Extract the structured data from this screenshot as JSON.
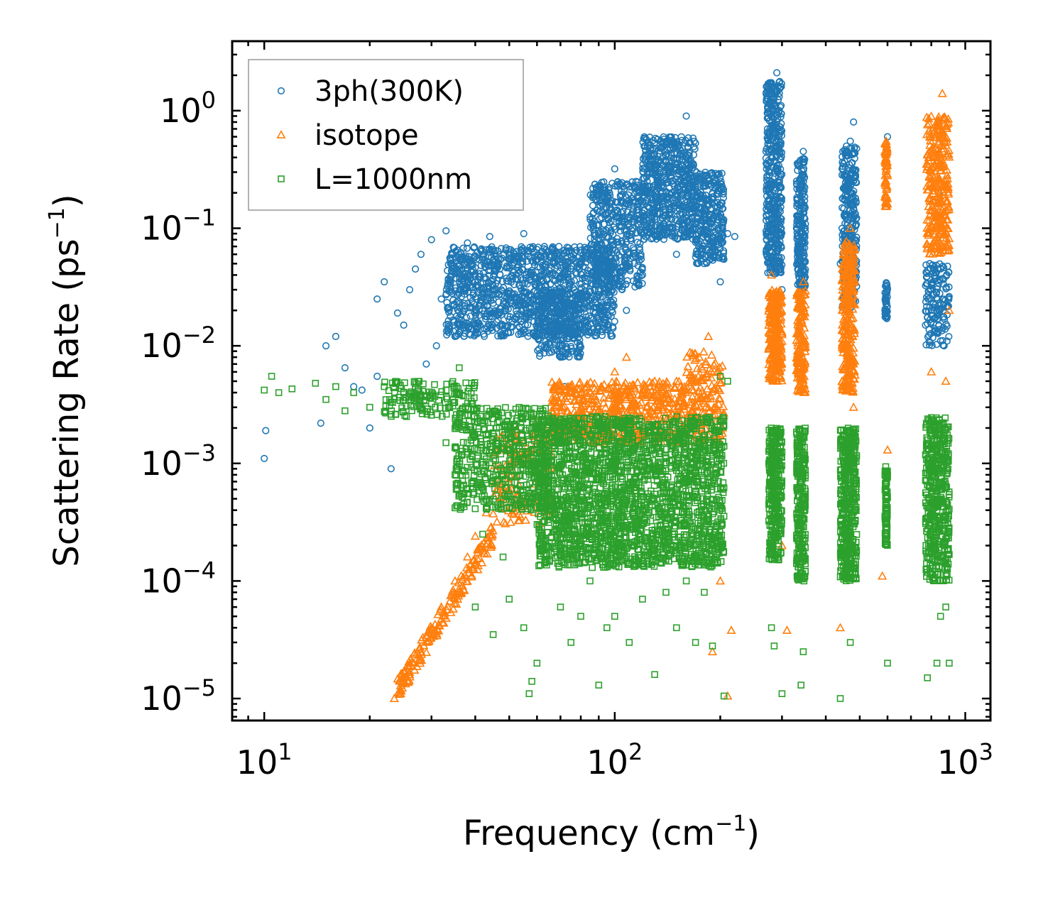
{
  "chart_data": {
    "type": "scatter",
    "title": "",
    "xlabel": "Frequency (cm",
    "xlabel_sup": "−1",
    "xlabel_end": ")",
    "ylabel": "Scattering Rate (ps",
    "ylabel_sup": "−1",
    "ylabel_end": ")",
    "xscale": "log",
    "yscale": "log",
    "xlim": [
      8.1,
      1180
    ],
    "ylim": [
      6.5e-06,
      3.9
    ],
    "grid": false,
    "legend_position": "top-left",
    "xticks": [
      {
        "value": 10,
        "base": "10",
        "exp": "1"
      },
      {
        "value": 100,
        "base": "10",
        "exp": "2"
      },
      {
        "value": 1000,
        "base": "10",
        "exp": "3"
      }
    ],
    "yticks": [
      {
        "value": 1e-05,
        "base": "10",
        "exp": "−5"
      },
      {
        "value": 0.0001,
        "base": "10",
        "exp": "−4"
      },
      {
        "value": 0.001,
        "base": "10",
        "exp": "−3"
      },
      {
        "value": 0.01,
        "base": "10",
        "exp": "−2"
      },
      {
        "value": 0.1,
        "base": "10",
        "exp": "−1"
      },
      {
        "value": 1,
        "base": "10",
        "exp": "0"
      }
    ],
    "series": [
      {
        "name": "3ph(300K)",
        "marker": "circle",
        "color": "#1f77b4",
        "points": [
          [
            10.0,
            0.0011
          ],
          [
            10.1,
            0.0019
          ],
          [
            14.5,
            0.0022
          ],
          [
            15,
            0.01
          ],
          [
            16,
            0.012
          ],
          [
            17,
            0.0065
          ],
          [
            18,
            0.0045
          ],
          [
            19,
            0.0042
          ],
          [
            20,
            0.002
          ],
          [
            21,
            0.0055
          ],
          [
            21,
            0.025
          ],
          [
            22,
            0.035
          ],
          [
            23,
            0.0009
          ],
          [
            24,
            0.019
          ],
          [
            25,
            0.015
          ],
          [
            26,
            0.03
          ],
          [
            27,
            0.045
          ],
          [
            28,
            0.06
          ],
          [
            29,
            0.007
          ],
          [
            30,
            0.08
          ],
          [
            31,
            0.01
          ],
          [
            32,
            0.025
          ],
          [
            33,
            0.095
          ],
          [
            34,
            0.05
          ],
          [
            35,
            0.012
          ],
          [
            36,
            0.035
          ],
          [
            38,
            0.075
          ],
          [
            40,
            0.02
          ],
          [
            42,
            0.06
          ],
          [
            44,
            0.085
          ],
          [
            46,
            0.03
          ],
          [
            48,
            0.015
          ],
          [
            50,
            0.055
          ],
          [
            52,
            0.022
          ],
          [
            55,
            0.09
          ],
          [
            58,
            0.04
          ],
          [
            60,
            0.012
          ],
          [
            63,
            0.07
          ],
          [
            66,
            0.03
          ],
          [
            70,
            0.008
          ],
          [
            72,
            0.0045
          ],
          [
            75,
            0.045
          ],
          [
            80,
            0.065
          ],
          [
            85,
            0.02
          ],
          [
            90,
            0.08
          ],
          [
            95,
            0.05
          ],
          [
            100,
            0.32
          ],
          [
            105,
            0.12
          ],
          [
            108,
            0.02
          ],
          [
            110,
            0.06
          ],
          [
            115,
            0.25
          ],
          [
            120,
            0.04
          ],
          [
            125,
            0.1
          ],
          [
            130,
            0.35
          ],
          [
            135,
            0.55
          ],
          [
            140,
            0.2
          ],
          [
            150,
            0.06
          ],
          [
            160,
            0.9
          ],
          [
            165,
            0.25
          ],
          [
            170,
            0.1
          ],
          [
            180,
            0.05
          ],
          [
            190,
            0.2
          ],
          [
            200,
            0.035
          ],
          [
            210,
            0.09
          ],
          [
            220,
            0.085
          ],
          [
            270,
            0.45
          ],
          [
            280,
            1.6
          ],
          [
            290,
            2.1
          ],
          [
            300,
            0.03
          ],
          [
            330,
            0.1
          ],
          [
            345,
            0.45
          ],
          [
            440,
            0.05
          ],
          [
            470,
            0.55
          ],
          [
            480,
            0.8
          ],
          [
            590,
            0.02
          ],
          [
            600,
            0.6
          ],
          [
            770,
            0.015
          ],
          [
            800,
            0.02
          ],
          [
            840,
            0.2
          ],
          [
            870,
            0.01
          ]
        ],
        "bands": [
          {
            "x_range": [
              33,
              100
            ],
            "y_range": [
              0.012,
              0.07
            ],
            "n": 1300
          },
          {
            "x_range": [
              60,
              80
            ],
            "y_range": [
              0.008,
              0.03
            ],
            "n": 250
          },
          {
            "x_range": [
              85,
              120
            ],
            "y_range": [
              0.03,
              0.25
            ],
            "n": 450
          },
          {
            "x_range": [
              120,
              170
            ],
            "y_range": [
              0.08,
              0.6
            ],
            "n": 600
          },
          {
            "x_range": [
              170,
              205
            ],
            "y_range": [
              0.05,
              0.3
            ],
            "n": 300
          },
          {
            "x_range": [
              270,
              300
            ],
            "y_range": [
              0.04,
              1.8
            ],
            "n": 450
          },
          {
            "x_range": [
              330,
              350
            ],
            "y_range": [
              0.03,
              0.4
            ],
            "n": 220
          },
          {
            "x_range": [
              445,
              490
            ],
            "y_range": [
              0.02,
              0.5
            ],
            "n": 300
          },
          {
            "x_range": [
              590,
              600
            ],
            "y_range": [
              0.017,
              0.035
            ],
            "n": 40
          },
          {
            "x_range": [
              770,
              900
            ],
            "y_range": [
              0.01,
              0.05
            ],
            "n": 150
          }
        ]
      },
      {
        "name": "isotope",
        "marker": "triangle",
        "color": "#ff7f0e",
        "points": [
          [
            23.5,
            1e-05
          ],
          [
            24.5,
            1.1e-05
          ],
          [
            26,
            1.6e-05
          ],
          [
            28,
            2.5e-05
          ],
          [
            30,
            4e-05
          ],
          [
            32,
            6e-05
          ],
          [
            35,
            0.0001
          ],
          [
            38,
            0.00016
          ],
          [
            40,
            0.00024
          ],
          [
            43,
            0.00038
          ],
          [
            46,
            0.0006
          ],
          [
            50,
            0.0008
          ],
          [
            55,
            0.0015
          ],
          [
            60,
            0.0023
          ],
          [
            66,
            0.0028
          ],
          [
            70,
            0.003
          ],
          [
            80,
            0.004
          ],
          [
            100,
            0.006
          ],
          [
            108,
            0.008
          ],
          [
            130,
            0.005
          ],
          [
            150,
            0.005
          ],
          [
            160,
            0.0045
          ],
          [
            185,
            0.012
          ],
          [
            190,
            2.5e-05
          ],
          [
            200,
            0.0001
          ],
          [
            210,
            1.05e-05
          ],
          [
            215,
            3.8e-05
          ],
          [
            280,
            0.04
          ],
          [
            300,
            0.0002
          ],
          [
            310,
            3.8e-05
          ],
          [
            345,
            0.035
          ],
          [
            440,
            4e-05
          ],
          [
            470,
            0.1
          ],
          [
            480,
            0.003
          ],
          [
            580,
            0.00011
          ],
          [
            595,
            0.55
          ],
          [
            600,
            0.0013
          ],
          [
            780,
            0.35
          ],
          [
            800,
            0.006
          ],
          [
            860,
            1.4
          ],
          [
            880,
            0.005
          ],
          [
            900,
            0.02
          ]
        ],
        "bands": [
          {
            "x_range": [
              24,
              45
            ],
            "y_range": [
              1.2e-05,
              0.00025
            ],
            "n": 170,
            "trend": "diag"
          },
          {
            "x_range": [
              45,
              66
            ],
            "y_range": [
              0.0003,
              0.002
            ],
            "n": 120
          },
          {
            "x_range": [
              66,
              160
            ],
            "y_range": [
              0.0015,
              0.005
            ],
            "n": 550
          },
          {
            "x_range": [
              160,
              205
            ],
            "y_range": [
              0.0015,
              0.009
            ],
            "n": 160
          },
          {
            "x_range": [
              275,
              300
            ],
            "y_range": [
              0.005,
              0.03
            ],
            "n": 250
          },
          {
            "x_range": [
              330,
              350
            ],
            "y_range": [
              0.004,
              0.03
            ],
            "n": 160
          },
          {
            "x_range": [
              445,
              485
            ],
            "y_range": [
              0.004,
              0.08
            ],
            "n": 260
          },
          {
            "x_range": [
              590,
              600
            ],
            "y_range": [
              0.15,
              0.55
            ],
            "n": 60
          },
          {
            "x_range": [
              775,
              900
            ],
            "y_range": [
              0.06,
              0.9
            ],
            "n": 300
          }
        ]
      },
      {
        "name": "L=1000nm",
        "marker": "square",
        "color": "#2ca02c",
        "points": [
          [
            10,
            0.0042
          ],
          [
            10.5,
            0.0055
          ],
          [
            11,
            0.004
          ],
          [
            12,
            0.0043
          ],
          [
            14,
            0.0048
          ],
          [
            15,
            0.0035
          ],
          [
            16,
            0.0045
          ],
          [
            17,
            0.0028
          ],
          [
            18,
            0.004
          ],
          [
            20,
            0.003
          ],
          [
            22,
            0.0045
          ],
          [
            25,
            0.004
          ],
          [
            28,
            0.0038
          ],
          [
            30,
            0.0032
          ],
          [
            33,
            0.0015
          ],
          [
            35,
            0.0008
          ],
          [
            36,
            0.0065
          ],
          [
            38,
            0.0012
          ],
          [
            40,
            6e-05
          ],
          [
            42,
            0.00025
          ],
          [
            45,
            3.5e-05
          ],
          [
            48,
            0.00016
          ],
          [
            50,
            7e-05
          ],
          [
            55,
            4e-05
          ],
          [
            57,
            1.1e-05
          ],
          [
            58,
            1.4e-05
          ],
          [
            60,
            2e-05
          ],
          [
            65,
            0.00015
          ],
          [
            70,
            6e-05
          ],
          [
            75,
            3e-05
          ],
          [
            80,
            5e-05
          ],
          [
            85,
            0.0001
          ],
          [
            90,
            1.3e-05
          ],
          [
            95,
            4e-05
          ],
          [
            100,
            5e-05
          ],
          [
            110,
            3e-05
          ],
          [
            120,
            7e-05
          ],
          [
            130,
            1.6e-05
          ],
          [
            140,
            8e-05
          ],
          [
            150,
            4e-05
          ],
          [
            160,
            0.0001
          ],
          [
            170,
            3e-05
          ],
          [
            180,
            8e-05
          ],
          [
            190,
            2.8e-05
          ],
          [
            200,
            0.0055
          ],
          [
            205,
            1.05e-05
          ],
          [
            210,
            0.005
          ],
          [
            280,
            4e-05
          ],
          [
            285,
            2.8e-05
          ],
          [
            300,
            1.1e-05
          ],
          [
            340,
            1.3e-05
          ],
          [
            345,
            2.5e-05
          ],
          [
            440,
            1e-05
          ],
          [
            470,
            3e-05
          ],
          [
            600,
            2e-05
          ],
          [
            780,
            1.5e-05
          ],
          [
            830,
            2e-05
          ],
          [
            850,
            5e-05
          ],
          [
            880,
            6e-05
          ],
          [
            900,
            2e-05
          ]
        ],
        "bands": [
          {
            "x_range": [
              22,
              40
            ],
            "y_range": [
              0.0025,
              0.005
            ],
            "n": 150
          },
          {
            "x_range": [
              35,
              65
            ],
            "y_range": [
              0.0004,
              0.003
            ],
            "n": 550
          },
          {
            "x_range": [
              60,
              205
            ],
            "y_range": [
              0.00013,
              0.0025
            ],
            "n": 2200
          },
          {
            "x_range": [
              275,
              300
            ],
            "y_range": [
              0.00015,
              0.002
            ],
            "n": 300
          },
          {
            "x_range": [
              330,
              350
            ],
            "y_range": [
              0.0001,
              0.002
            ],
            "n": 250
          },
          {
            "x_range": [
              440,
              490
            ],
            "y_range": [
              0.0001,
              0.002
            ],
            "n": 400
          },
          {
            "x_range": [
              590,
              600
            ],
            "y_range": [
              0.0002,
              0.001
            ],
            "n": 100
          },
          {
            "x_range": [
              770,
              900
            ],
            "y_range": [
              0.0001,
              0.0025
            ],
            "n": 450
          }
        ]
      }
    ]
  }
}
